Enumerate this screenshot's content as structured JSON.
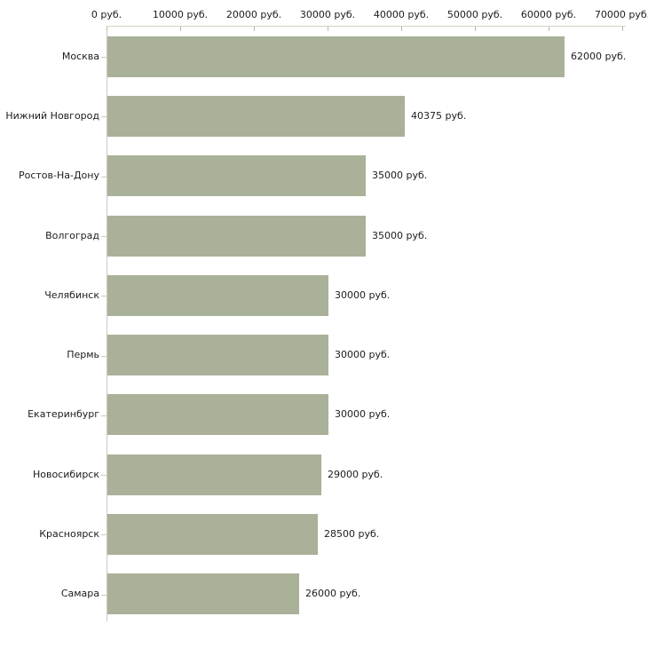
{
  "chart_data": {
    "type": "bar",
    "orientation": "horizontal",
    "title": "",
    "xlabel": "",
    "ylabel": "",
    "categories": [
      "Москва",
      "Нижний Новгород",
      "Ростов-На-Дону",
      "Волгоград",
      "Челябинск",
      "Пермь",
      "Екатеринбург",
      "Новосибирск",
      "Красноярск",
      "Самара"
    ],
    "values": [
      62000,
      40375,
      35000,
      35000,
      30000,
      30000,
      30000,
      29000,
      28500,
      26000
    ],
    "value_labels": [
      "62000 руб.",
      "40375 руб.",
      "35000 руб.",
      "35000 руб.",
      "30000 руб.",
      "30000 руб.",
      "30000 руб.",
      "29000 руб.",
      "28500 руб.",
      "26000 руб."
    ],
    "x_axis": {
      "tick_values": [
        0,
        10000,
        20000,
        30000,
        40000,
        50000,
        60000,
        70000
      ],
      "tick_labels": [
        "0 руб.",
        "10000 руб.",
        "20000 руб.",
        "30000 руб.",
        "40000 руб.",
        "50000 руб.",
        "60000 руб.",
        "70000 руб."
      ]
    },
    "xlim": [
      0,
      70000
    ],
    "grid": false,
    "legend": false,
    "colors": {
      "bar": "#aab199",
      "axis_line": "#d3d7c3",
      "tick": "#b6bd9e",
      "category_axis_line": "#c9cbbf",
      "text": "#1c1c1c",
      "background": "#ffffff"
    }
  }
}
